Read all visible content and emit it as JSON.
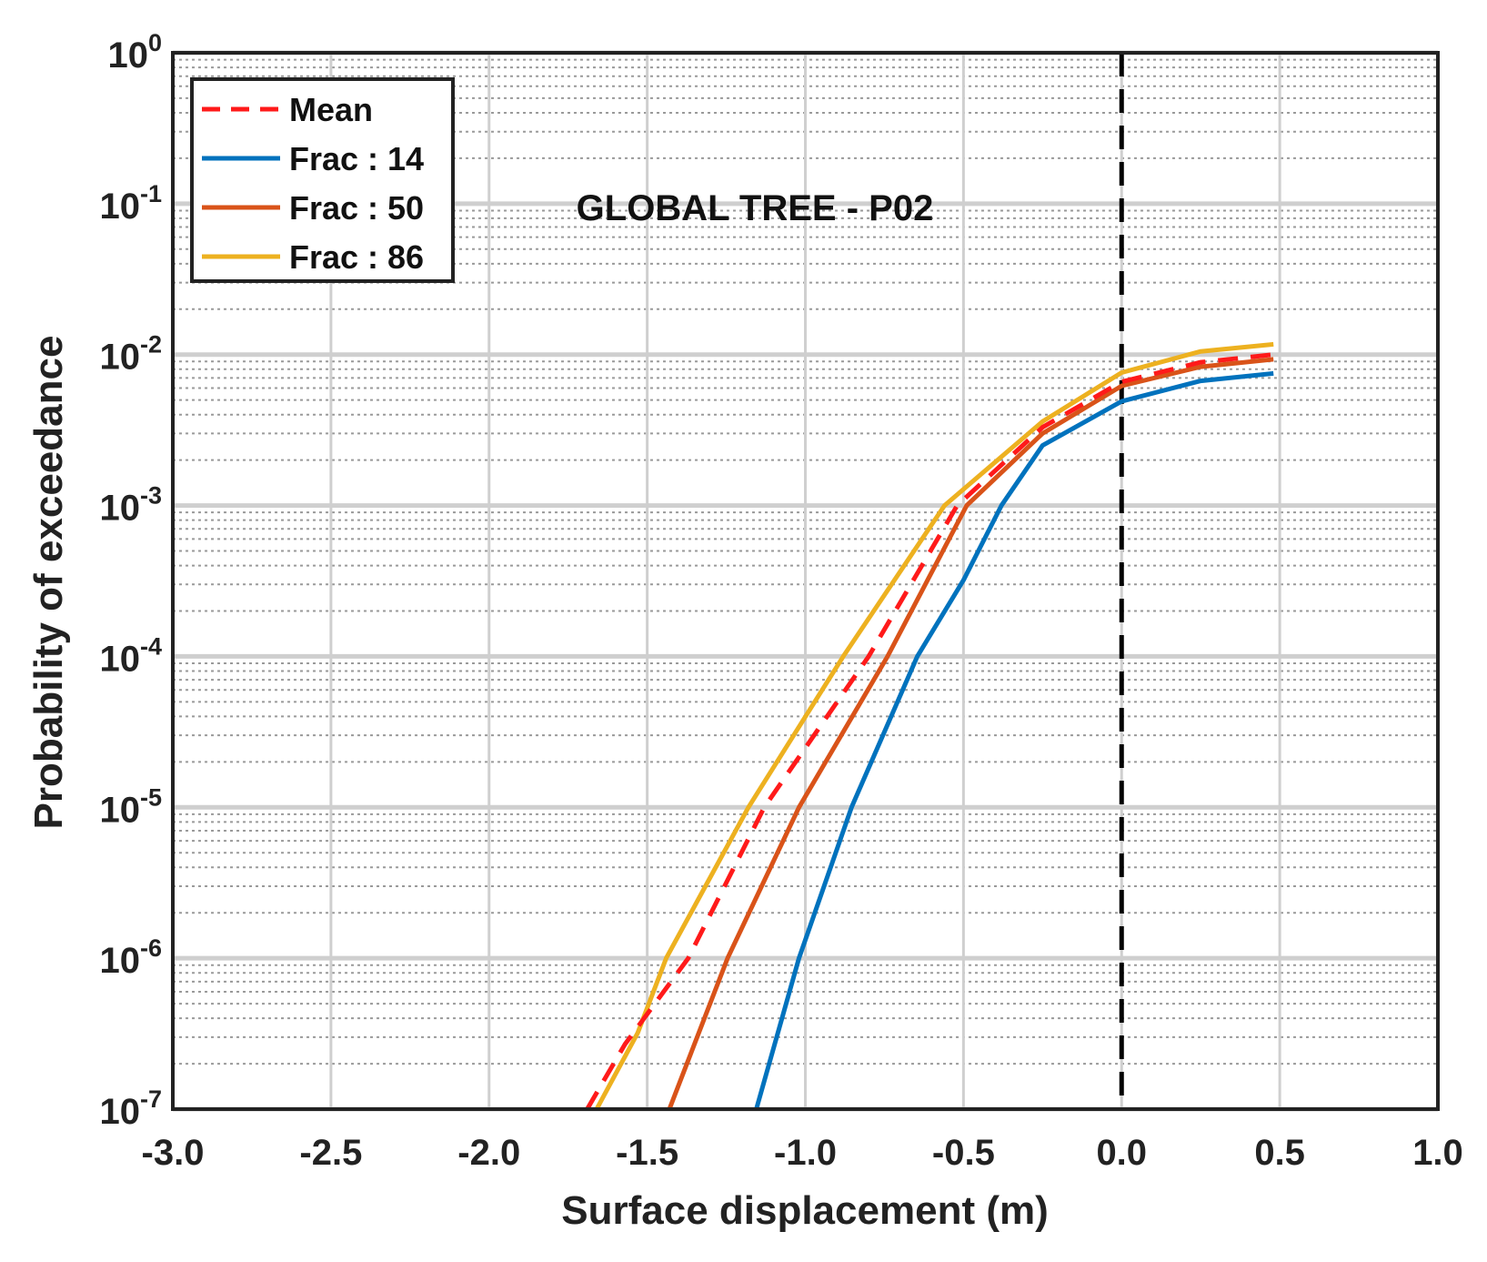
{
  "chart_data": {
    "type": "line",
    "title": "GLOBAL TREE - P02",
    "xlabel": "Surface displacement (m)",
    "ylabel": "Probability of exceedance",
    "xlim": [
      -3.0,
      1.0
    ],
    "ylim": [
      1e-07,
      1
    ],
    "yscale": "log",
    "grid": true,
    "minor_grid": true,
    "legend_position": "top-left",
    "xticks": [
      "-3.0",
      "-2.5",
      "-2.0",
      "-1.5",
      "-1.0",
      "-0.5",
      "0.0",
      "0.5",
      "1.0"
    ],
    "xtick_values": [
      -3.0,
      -2.5,
      -2.0,
      -1.5,
      -1.0,
      -0.5,
      0.0,
      0.5,
      1.0
    ],
    "yticks": [
      {
        "base": "10",
        "exp": "-7",
        "value": 1e-07
      },
      {
        "base": "10",
        "exp": "-6",
        "value": 1e-06
      },
      {
        "base": "10",
        "exp": "-5",
        "value": 1e-05
      },
      {
        "base": "10",
        "exp": "-4",
        "value": 0.0001
      },
      {
        "base": "10",
        "exp": "-3",
        "value": 0.001
      },
      {
        "base": "10",
        "exp": "-2",
        "value": 0.01
      },
      {
        "base": "10",
        "exp": "-1",
        "value": 0.1
      },
      {
        "base": "10",
        "exp": "0",
        "value": 1
      }
    ],
    "reference_line": {
      "x": 0.0,
      "style": "dashed",
      "color": "#000000"
    },
    "series": [
      {
        "name": "Mean",
        "color": "#FF1A1A",
        "style": "dashed",
        "x": [
          -1.69,
          -1.57,
          -1.37,
          -1.13,
          -0.8,
          -0.52,
          -0.25,
          0.0,
          0.25,
          0.48
        ],
        "y": [
          1e-07,
          2.7e-07,
          1e-06,
          1e-05,
          0.0001,
          0.001,
          0.0033,
          0.0066,
          0.0089,
          0.01
        ]
      },
      {
        "name": "Frac : 14",
        "color": "#0072BD",
        "style": "solid",
        "x": [
          -1.155,
          -1.02,
          -0.854,
          -0.646,
          -0.5,
          -0.38,
          -0.25,
          0.0,
          0.25,
          0.48
        ],
        "y": [
          1e-07,
          1e-06,
          1e-05,
          0.0001,
          0.00032,
          0.001,
          0.0025,
          0.0049,
          0.0067,
          0.0075
        ]
      },
      {
        "name": "Frac : 50",
        "color": "#D95319",
        "style": "solid",
        "x": [
          -1.43,
          -1.246,
          -1.02,
          -0.74,
          -0.49,
          -0.25,
          0.0,
          0.25,
          0.48
        ],
        "y": [
          1e-07,
          1e-06,
          1e-05,
          0.0001,
          0.001,
          0.003,
          0.0062,
          0.0083,
          0.0093
        ]
      },
      {
        "name": "Frac : 86",
        "color": "#EDB120",
        "style": "solid",
        "x": [
          -1.66,
          -1.53,
          -1.44,
          -1.18,
          -0.88,
          -0.56,
          -0.25,
          0.0,
          0.25,
          0.48
        ],
        "y": [
          1e-07,
          3.2e-07,
          1e-06,
          1e-05,
          0.0001,
          0.001,
          0.0036,
          0.0076,
          0.0105,
          0.0117
        ]
      }
    ]
  }
}
